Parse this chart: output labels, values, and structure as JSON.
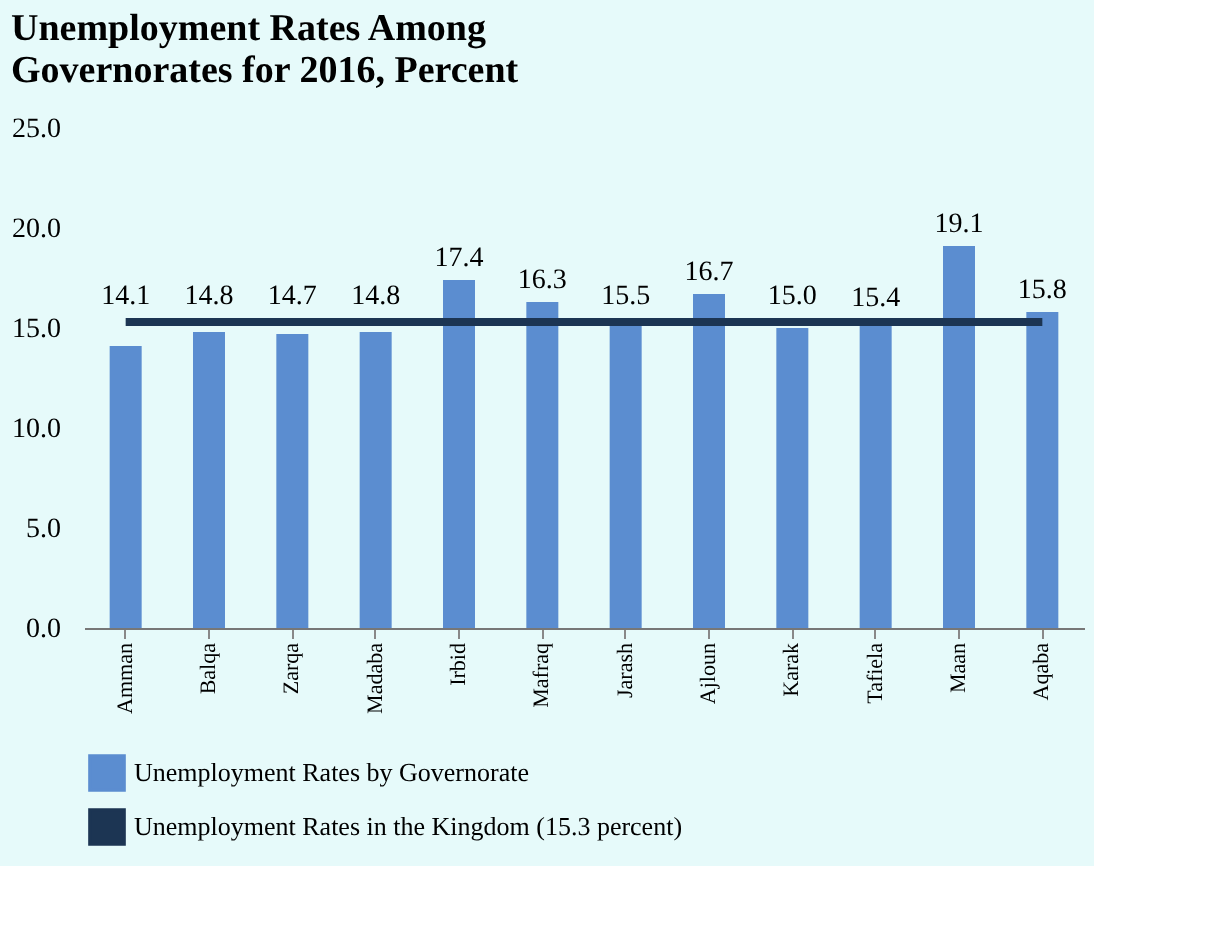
{
  "chart_data": {
    "type": "bar",
    "title": "Unemployment Rates Among Governorates for 2016, Percent",
    "categories": [
      "Amman",
      "Balqa",
      "Zarqa",
      "Madaba",
      "Irbid",
      "Mafraq",
      "Jarash",
      "Ajloun",
      "Karak",
      "Tafiela",
      "Maan",
      "Aqaba"
    ],
    "series": [
      {
        "name": "Unemployment Rates by Governorate",
        "color": "#5b8dd0",
        "values": [
          14.1,
          14.8,
          14.7,
          14.8,
          17.4,
          16.3,
          15.5,
          16.7,
          15.0,
          15.4,
          19.1,
          15.8
        ],
        "value_labels": [
          "14.1",
          "14.8",
          "14.7",
          "14.8",
          "17.4",
          "16.3",
          "15.5",
          "16.7",
          "15.0",
          "15.4",
          "19.1",
          "15.8"
        ]
      },
      {
        "name": "Unemployment Rates in the Kingdom (15.3 percent)",
        "type": "line",
        "color": "#1c3553",
        "values": [
          15.3,
          15.3,
          15.3,
          15.3,
          15.3,
          15.3,
          15.3,
          15.3,
          15.3,
          15.3,
          15.3,
          15.3
        ]
      }
    ],
    "ylim": [
      0,
      25
    ],
    "yticks": [
      {
        "value": 0,
        "label": "0.0"
      },
      {
        "value": 5,
        "label": "5.0"
      },
      {
        "value": 10,
        "label": "10.0"
      },
      {
        "value": 15,
        "label": "15.0"
      },
      {
        "value": 20,
        "label": "20.0"
      },
      {
        "value": 25,
        "label": "25.0"
      }
    ],
    "grid": false,
    "legend": "bottom"
  }
}
